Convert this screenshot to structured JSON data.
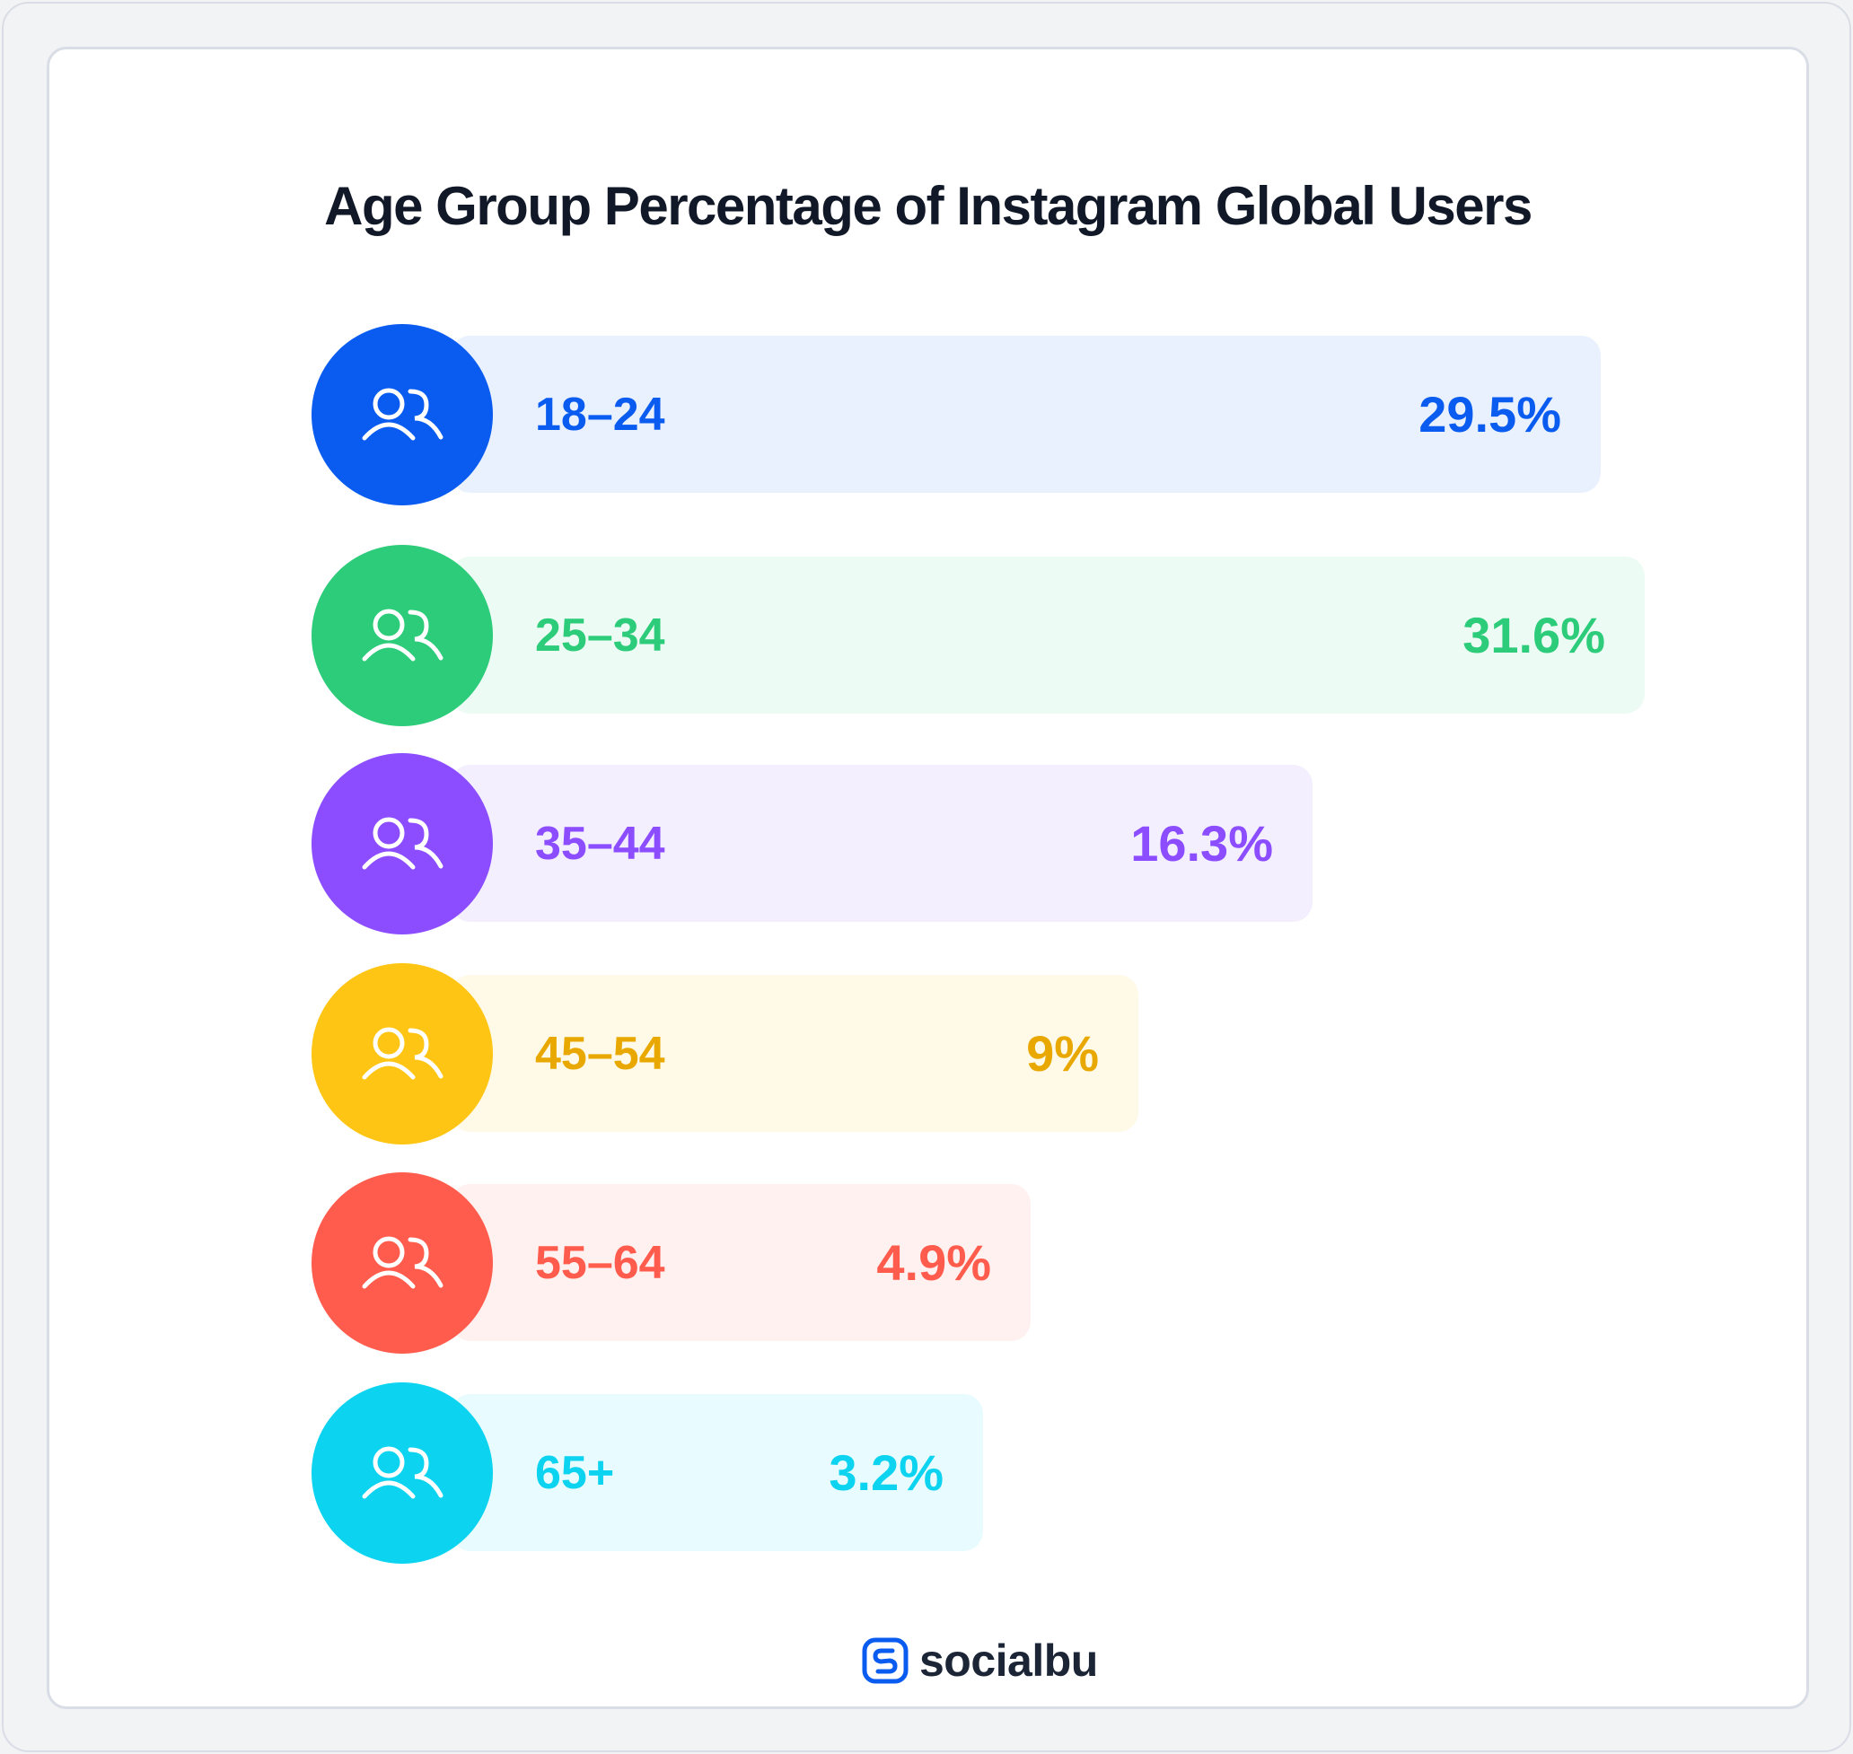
{
  "chart_data": {
    "type": "bar",
    "orientation": "horizontal",
    "title": "Age Group Percentage of Instagram Global Users",
    "categories": [
      "18–24",
      "25–34",
      "35–44",
      "45–54",
      "55–64",
      "65+"
    ],
    "values": [
      29.5,
      31.6,
      16.3,
      9,
      4.9,
      3.2
    ],
    "value_labels": [
      "29.5%",
      "31.6%",
      "16.3%",
      "9%",
      "4.9%",
      "3.2%"
    ],
    "colors": [
      "#0a5cf0",
      "#2ccc7a",
      "#8b4dff",
      "#fec514",
      "#ff5c4d",
      "#0bd3f0"
    ],
    "text_colors": [
      "#0a5cf0",
      "#2ccc7a",
      "#8b4dff",
      "#e8a800",
      "#ff5c4d",
      "#0bd3f0"
    ],
    "bar_bg_colors": [
      "#eaf1fe",
      "#ecfbf3",
      "#f3effe",
      "#fffae8",
      "#fff1f0",
      "#e8fbfe"
    ],
    "icon": "users-icon",
    "grid": false,
    "legend": "none"
  },
  "brand": {
    "name": "socialbu",
    "logo_icon": "socialbu-logo-icon",
    "color": "#0a5cf0"
  }
}
